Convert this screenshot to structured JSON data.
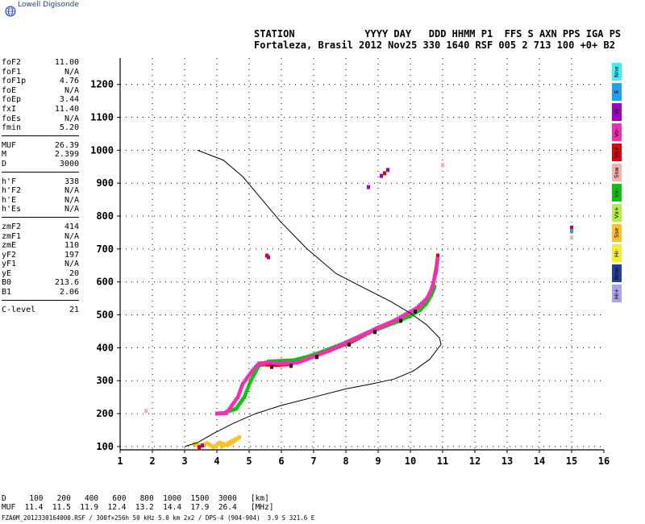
{
  "header": {
    "brand": "Lowell Digisonde",
    "station_line1": "STATION            YYYY DAY   DDD HHMM P1  FFS S AXN PPS IGA PS",
    "station_line2": "Fortaleza, Brasil 2012 Nov25 330 1640 RSF 005 2 713 100 +0+ B2"
  },
  "params": [
    {
      "k": "foF2",
      "v": "11.00"
    },
    {
      "k": "foF1",
      "v": "N/A"
    },
    {
      "k": "foF1p",
      "v": "4.76"
    },
    {
      "k": "foE",
      "v": "N/A"
    },
    {
      "k": "foEp",
      "v": "3.44"
    },
    {
      "k": "fxI",
      "v": "11.40"
    },
    {
      "k": "foEs",
      "v": "N/A"
    },
    {
      "k": "fmin",
      "v": "5.20"
    },
    {
      "sep": true
    },
    {
      "k": "MUF",
      "v": "26.39"
    },
    {
      "k": "M",
      "v": "2.399"
    },
    {
      "k": "D",
      "v": "3000"
    },
    {
      "sep": true
    },
    {
      "k": "h'F",
      "v": "338"
    },
    {
      "k": "h'F2",
      "v": "N/A"
    },
    {
      "k": "h'E",
      "v": "N/A"
    },
    {
      "k": "h'Es",
      "v": "N/A"
    },
    {
      "sep": true
    },
    {
      "k": "zmF2",
      "v": "414"
    },
    {
      "k": "zmF1",
      "v": "N/A"
    },
    {
      "k": "zmE",
      "v": "110"
    },
    {
      "k": "yF2",
      "v": "197"
    },
    {
      "k": "yF1",
      "v": "N/A"
    },
    {
      "k": "yE",
      "v": "20"
    },
    {
      "k": "B0",
      "v": "213.6"
    },
    {
      "k": "B1",
      "v": "2.06"
    },
    {
      "sep": true
    },
    {
      "k": "C-level",
      "v": "21"
    }
  ],
  "legend": [
    {
      "label": "Nne",
      "color": "#40f0f0"
    },
    {
      "label": "E",
      "color": "#20a0f0"
    },
    {
      "label": "W",
      "color": "#a000c0"
    },
    {
      "label": "Vo-",
      "color": "#f030b0"
    },
    {
      "label": "Vo+",
      "color": "#e00000"
    },
    {
      "label": "Ssw",
      "color": "#f5b0b0"
    },
    {
      "label": "Vx-",
      "color": "#10c010"
    },
    {
      "label": "Vx+",
      "color": "#b0f040"
    },
    {
      "label": "Sse",
      "color": "#ffc020"
    },
    {
      "label": "Hi-",
      "color": "#f0f030"
    },
    {
      "label": "Nnw",
      "color": "#2040a0"
    },
    {
      "label": "Hi+",
      "color": "#b0a0f0"
    }
  ],
  "muf_table": {
    "d_label": "D",
    "muf_label": "MUF",
    "d_values": [
      "100",
      "200",
      "400",
      "600",
      "800",
      "1000",
      "1500",
      "3000"
    ],
    "muf_values": [
      "11.4",
      "11.5",
      "11.9",
      "12.4",
      "13.2",
      "14.4",
      "17.9",
      "26.4"
    ],
    "d_unit": "[km]",
    "muf_unit": "[MHz]"
  },
  "footer": "FZA0M_2012330164000.RSF / 300f×256h 50 kHz 5.0 km 2x2 / DPS-4 (904-904)  3.9 S 321.6 E",
  "chart_data": {
    "type": "scatter",
    "xlim": [
      1,
      16
    ],
    "ylim": [
      90,
      1280
    ],
    "x_ticks": [
      1,
      2,
      3,
      4,
      5,
      6,
      7,
      8,
      9,
      10,
      11,
      12,
      13,
      14,
      15,
      16
    ],
    "y_ticks": [
      100,
      200,
      300,
      400,
      500,
      600,
      700,
      800,
      900,
      1000,
      1100,
      1200
    ],
    "grid": true,
    "profile_curve": [
      [
        3.0,
        100
      ],
      [
        3.4,
        112
      ],
      [
        3.9,
        140
      ],
      [
        4.5,
        170
      ],
      [
        5.2,
        200
      ],
      [
        6.0,
        225
      ],
      [
        7.0,
        250
      ],
      [
        8.0,
        275
      ],
      [
        8.8,
        290
      ],
      [
        9.5,
        305
      ],
      [
        10.1,
        330
      ],
      [
        10.6,
        365
      ],
      [
        10.95,
        410
      ],
      [
        10.9,
        430
      ],
      [
        10.5,
        470
      ],
      [
        10.0,
        505
      ],
      [
        9.4,
        540
      ],
      [
        8.6,
        580
      ],
      [
        7.7,
        625
      ],
      [
        6.8,
        700
      ],
      [
        6.0,
        780
      ],
      [
        5.4,
        850
      ],
      [
        4.8,
        920
      ],
      [
        4.2,
        970
      ],
      [
        3.4,
        1000
      ]
    ],
    "traces": [
      {
        "color": "#e00000",
        "points": [
          [
            5.4,
            350
          ],
          [
            5.8,
            348
          ],
          [
            6.2,
            350
          ],
          [
            6.6,
            360
          ],
          [
            7.0,
            375
          ],
          [
            7.4,
            390
          ],
          [
            7.8,
            405
          ],
          [
            8.2,
            420
          ],
          [
            8.6,
            440
          ],
          [
            9.0,
            460
          ],
          [
            9.4,
            475
          ],
          [
            9.8,
            490
          ],
          [
            10.1,
            505
          ],
          [
            10.35,
            525
          ],
          [
            10.55,
            550
          ],
          [
            10.7,
            590
          ],
          [
            10.8,
            640
          ],
          [
            10.85,
            680
          ]
        ]
      },
      {
        "color": "#10c010",
        "points": [
          [
            4.3,
            205
          ],
          [
            4.6,
            215
          ],
          [
            4.85,
            250
          ],
          [
            5.05,
            300
          ],
          [
            5.3,
            345
          ],
          [
            5.6,
            358
          ],
          [
            6.0,
            360
          ],
          [
            6.4,
            362
          ],
          [
            6.8,
            372
          ],
          [
            7.2,
            385
          ],
          [
            7.6,
            400
          ],
          [
            8.0,
            415
          ],
          [
            8.4,
            432
          ],
          [
            8.8,
            450
          ],
          [
            9.2,
            465
          ],
          [
            9.6,
            480
          ],
          [
            10.0,
            498
          ],
          [
            10.3,
            515
          ],
          [
            10.5,
            535
          ],
          [
            10.65,
            560
          ],
          [
            10.75,
            585
          ]
        ]
      },
      {
        "color": "#f030b0",
        "points": [
          [
            4.0,
            200
          ],
          [
            4.3,
            202
          ],
          [
            4.65,
            250
          ],
          [
            4.8,
            290
          ],
          [
            5.1,
            330
          ],
          [
            5.3,
            352
          ],
          [
            5.6,
            355
          ],
          [
            6.0,
            352
          ],
          [
            6.5,
            355
          ],
          [
            7.5,
            392
          ],
          [
            8.5,
            438
          ],
          [
            9.5,
            482
          ],
          [
            10.2,
            520
          ],
          [
            10.5,
            548
          ],
          [
            10.65,
            575
          ],
          [
            10.8,
            630
          ],
          [
            10.85,
            670
          ]
        ]
      },
      {
        "color": "#101010",
        "points": [
          [
            5.7,
            342
          ],
          [
            6.3,
            345
          ],
          [
            7.1,
            372
          ],
          [
            8.1,
            410
          ],
          [
            8.9,
            448
          ],
          [
            9.7,
            482
          ],
          [
            10.15,
            510
          ]
        ]
      },
      {
        "color": "#ffc020",
        "points": [
          [
            3.3,
            108
          ],
          [
            3.5,
            102
          ],
          [
            3.7,
            110
          ],
          [
            3.9,
            98
          ],
          [
            4.1,
            112
          ],
          [
            4.25,
            105
          ],
          [
            4.4,
            108
          ],
          [
            4.7,
            128
          ],
          [
            4.15,
            100
          ]
        ]
      },
      {
        "color": "#a000c0",
        "points": [
          [
            8.7,
            888
          ],
          [
            9.1,
            922
          ],
          [
            9.3,
            940
          ],
          [
            5.6,
            675
          ],
          [
            15.0,
            765
          ],
          [
            3.55,
            103
          ]
        ]
      },
      {
        "color": "#e00000",
        "points": [
          [
            9.2,
            930
          ],
          [
            5.55,
            680
          ],
          [
            15.0,
            760
          ],
          [
            3.45,
            98
          ]
        ]
      },
      {
        "color": "#20a0f0",
        "points": [
          [
            15.0,
            755
          ]
        ]
      },
      {
        "color": "#f5b0b0",
        "points": [
          [
            1.8,
            208
          ],
          [
            15.0,
            735
          ],
          [
            11.0,
            955
          ]
        ]
      }
    ]
  }
}
